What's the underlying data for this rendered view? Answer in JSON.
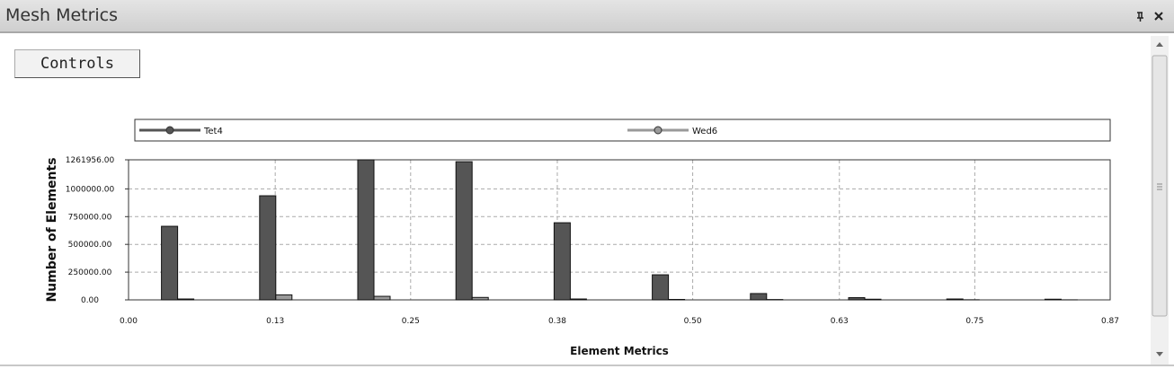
{
  "panel_title": "Mesh Metrics",
  "controls_button": "Controls",
  "chart_data": {
    "type": "bar",
    "x": [
      0.0435,
      0.1305,
      0.2175,
      0.3045,
      0.3915,
      0.4785,
      0.5655,
      0.6525,
      0.7395,
      0.8265
    ],
    "series": [
      {
        "name": "Tet4",
        "color": "#555555",
        "values": [
          663000,
          938000,
          1261956,
          1245000,
          695000,
          226000,
          57000,
          20000,
          8000,
          6000
        ]
      },
      {
        "name": "Wed6",
        "color": "#9a9a9a",
        "values": [
          8000,
          45000,
          32000,
          22000,
          8000,
          4000,
          3000,
          6000,
          1000,
          500
        ]
      }
    ],
    "x_label": "Element Metrics",
    "y_label": "Number of Elements",
    "xlim": [
      0,
      0.87
    ],
    "xticks": [
      {
        "value": 0,
        "label": "0.00"
      },
      0.13,
      0.25,
      0.38,
      {
        "value": 0.5,
        "label": "0.50"
      },
      0.63,
      0.75,
      0.87
    ],
    "ylim": [
      0,
      1261956
    ],
    "yticks": [
      {
        "value": 0,
        "label": "0.00"
      },
      {
        "value": 250000,
        "label": "250000.00"
      },
      {
        "value": 500000,
        "label": "500000.00"
      },
      {
        "value": 750000,
        "label": "750000.00"
      },
      {
        "value": 1000000,
        "label": "1000000.00"
      },
      {
        "value": 1261956,
        "label": "1261956.00"
      }
    ],
    "grid": true,
    "legend": "top"
  }
}
